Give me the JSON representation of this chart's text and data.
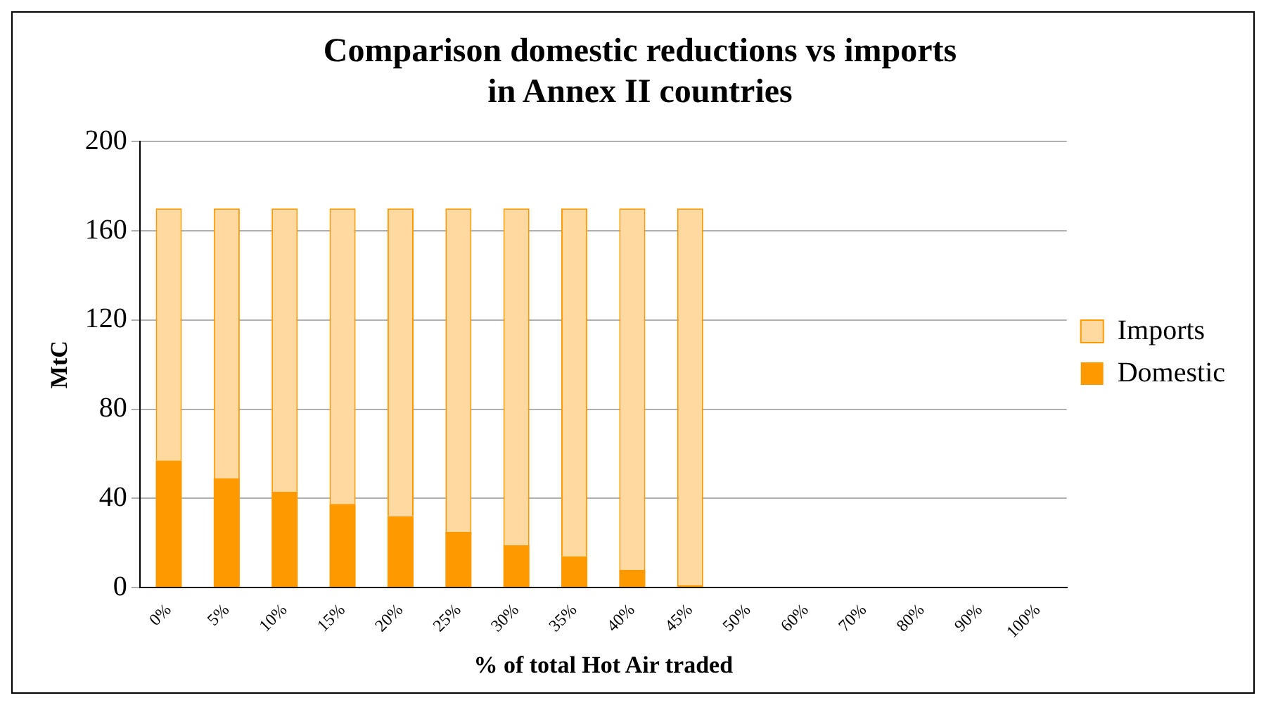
{
  "chart_data": {
    "type": "bar",
    "title": [
      "Comparison domestic reductions vs imports",
      "in Annex II countries"
    ],
    "xlabel": "% of total Hot Air traded",
    "ylabel": "MtC",
    "categories": [
      "0%",
      "5%",
      "10%",
      "15%",
      "20%",
      "25%",
      "30%",
      "35%",
      "40%",
      "45%",
      "50%",
      "60%",
      "70%",
      "80%",
      "90%",
      "100%"
    ],
    "series": [
      {
        "name": "Domestic",
        "color": "#ff9900",
        "values": [
          57,
          49,
          43,
          37.5,
          32,
          25,
          19,
          14,
          8,
          1,
          null,
          null,
          null,
          null,
          null,
          null
        ]
      },
      {
        "name": "Imports",
        "color": "#ffd9a0",
        "values": [
          113,
          121,
          127,
          132.5,
          138,
          145,
          151,
          156,
          162,
          169,
          null,
          null,
          null,
          null,
          null,
          null
        ]
      }
    ],
    "stacked": true,
    "ylim": [
      0,
      200
    ],
    "yticks": [
      0,
      40,
      80,
      120,
      160,
      200
    ],
    "grid": "y",
    "legend": "right"
  }
}
